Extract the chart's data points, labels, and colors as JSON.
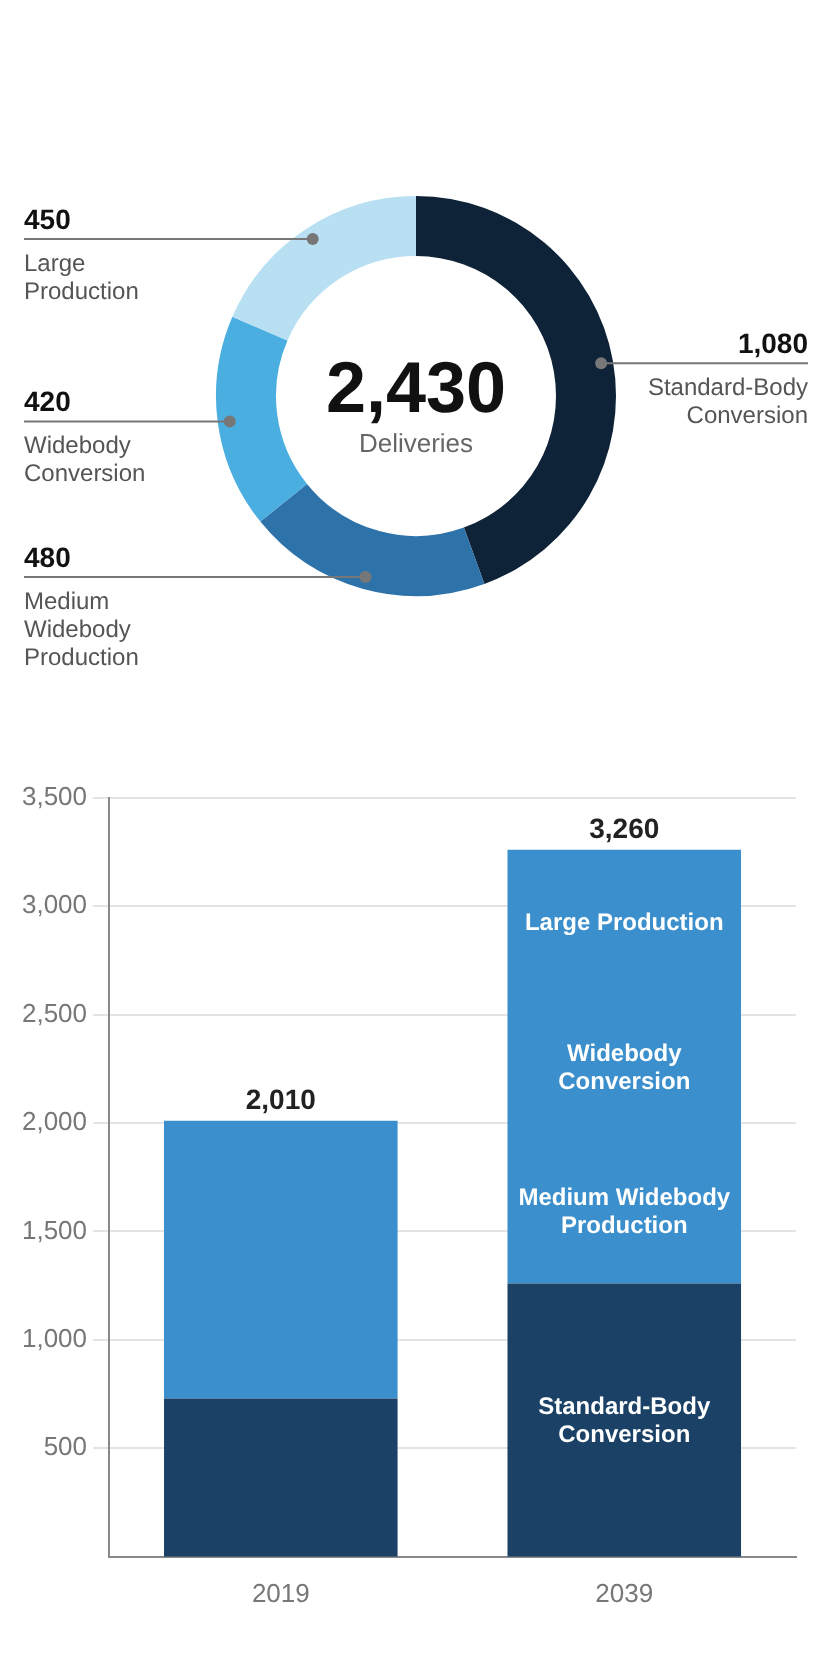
{
  "chart_data": [
    {
      "type": "donut",
      "categories": [
        "Standard-Body Conversion",
        "Medium Widebody Production",
        "Widebody Conversion",
        "Large Production"
      ],
      "values": [
        1080,
        480,
        420,
        450
      ],
      "colors": [
        "#0f2338",
        "#2e72aa",
        "#4aaee0",
        "#b8e0f2"
      ],
      "value_labels": [
        "1,080",
        "480",
        "420",
        "450"
      ],
      "annotations": [
        "2,430",
        "Deliveries"
      ],
      "legend": false
    },
    {
      "type": "bar",
      "stacked": true,
      "categories": [
        "2019",
        "2039"
      ],
      "series": [
        {
          "name": "Standard-Body Conversion",
          "color": "#1b4266",
          "values": [
            730,
            1260
          ]
        },
        {
          "color": "#3a8fcc",
          "values": [
            1280,
            2000
          ]
        }
      ],
      "totals": [
        "2,010",
        "3,260"
      ],
      "ylim": [
        0,
        3500
      ],
      "yticks": [
        500,
        {
          "value": 1000,
          "label": "1,000"
        },
        {
          "value": 1500,
          "label": "1,500"
        },
        {
          "value": 2000,
          "label": "2,000"
        },
        {
          "value": 2500,
          "label": "2,500"
        },
        {
          "value": 3000,
          "label": "3,000"
        },
        {
          "value": 3500,
          "label": "3,500"
        }
      ],
      "grid": "y",
      "legend": false,
      "annotations": [
        "Large Production",
        "Widebody Conversion",
        "Medium Widebody Production"
      ]
    }
  ]
}
